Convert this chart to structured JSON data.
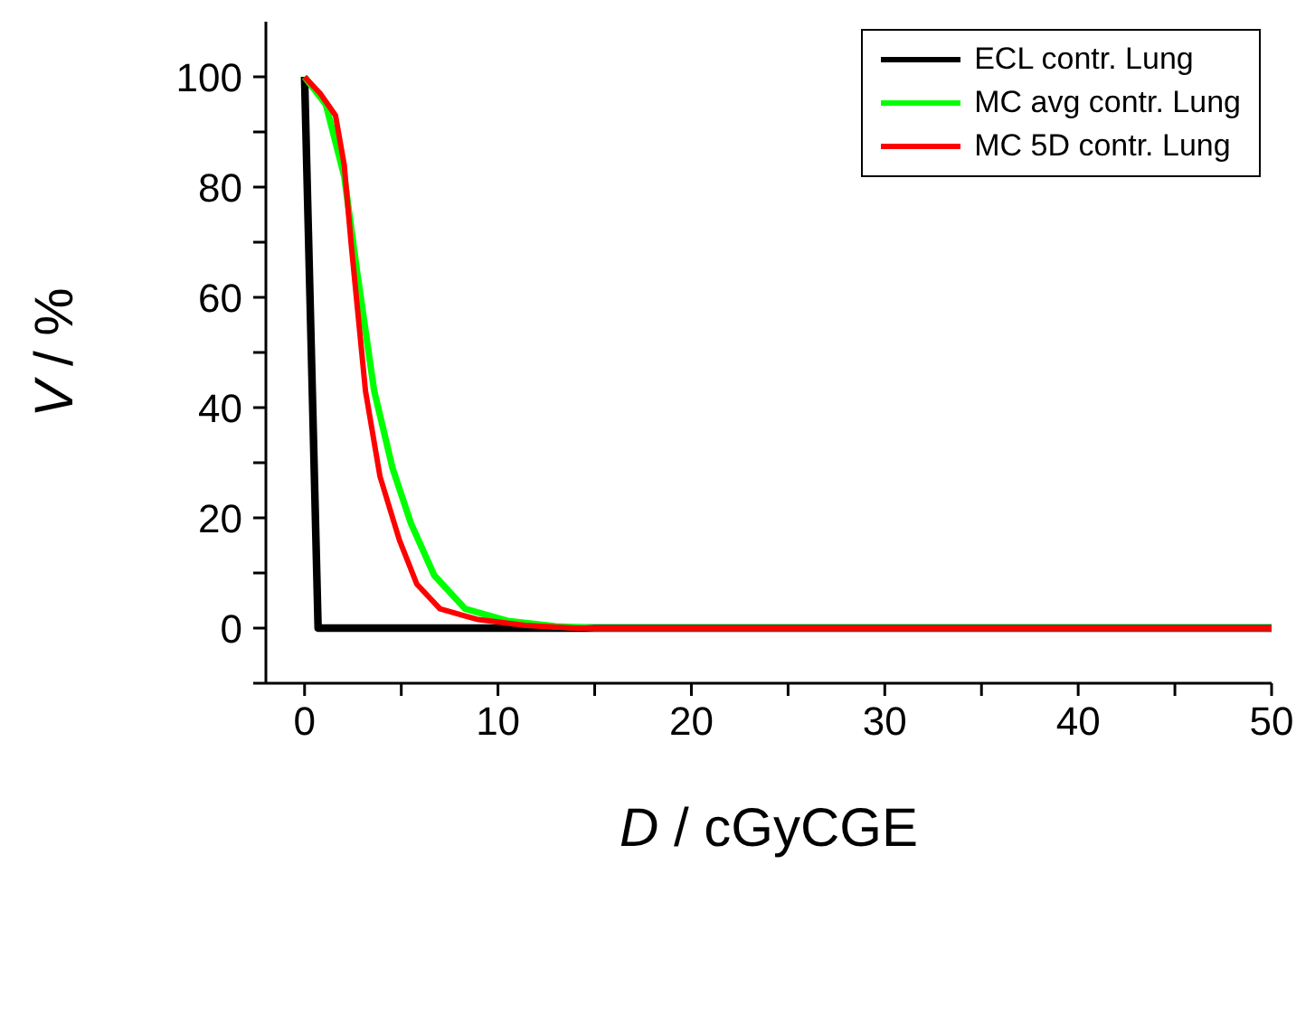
{
  "chart_data": {
    "type": "line",
    "xlabel": "D / cGyCGE",
    "ylabel": "V / %",
    "xlim": [
      -2,
      50
    ],
    "ylim": [
      -10,
      110
    ],
    "xticks": [
      0,
      {
        "value": 5,
        "label": null
      },
      10,
      {
        "value": 15,
        "label": null
      },
      20,
      {
        "value": 25,
        "label": null
      },
      30,
      {
        "value": 35,
        "label": null
      },
      40,
      {
        "value": 45,
        "label": null
      },
      50
    ],
    "yticks": [
      {
        "value": -10,
        "label": null
      },
      0,
      {
        "value": 10,
        "label": null
      },
      20,
      {
        "value": 30,
        "label": null
      },
      40,
      {
        "value": 50,
        "label": null
      },
      60,
      {
        "value": 70,
        "label": null
      },
      80,
      {
        "value": 90,
        "label": null
      },
      100
    ],
    "grid": false,
    "legend": "top right",
    "marker": "none",
    "line_style": "solid",
    "series": [
      {
        "name": "ECL contr. Lung",
        "color": "#000000",
        "x": [
          0,
          0.7,
          50
        ],
        "values": [
          100,
          0,
          0
        ]
      },
      {
        "name": "MC avg contr. Lung",
        "color": "#00ff00",
        "x": [
          0,
          1.1,
          2.05,
          2.7,
          3.6,
          4.55,
          5.5,
          6.7,
          8.3,
          10.5,
          13,
          15,
          50
        ],
        "values": [
          100,
          95,
          82,
          65,
          43,
          29,
          19,
          9.6,
          3.5,
          1.3,
          0.3,
          0,
          0
        ]
      },
      {
        "name": "MC 5D contr. Lung",
        "color": "#ff0000",
        "x": [
          0,
          0.8,
          1.6,
          2.05,
          2.4,
          3.15,
          3.9,
          4.9,
          5.8,
          7,
          8.9,
          11.4,
          14,
          50
        ],
        "values": [
          100,
          97,
          93,
          84,
          70,
          43,
          27.5,
          16,
          8,
          3.5,
          1.6,
          0.5,
          0,
          0
        ]
      }
    ]
  }
}
